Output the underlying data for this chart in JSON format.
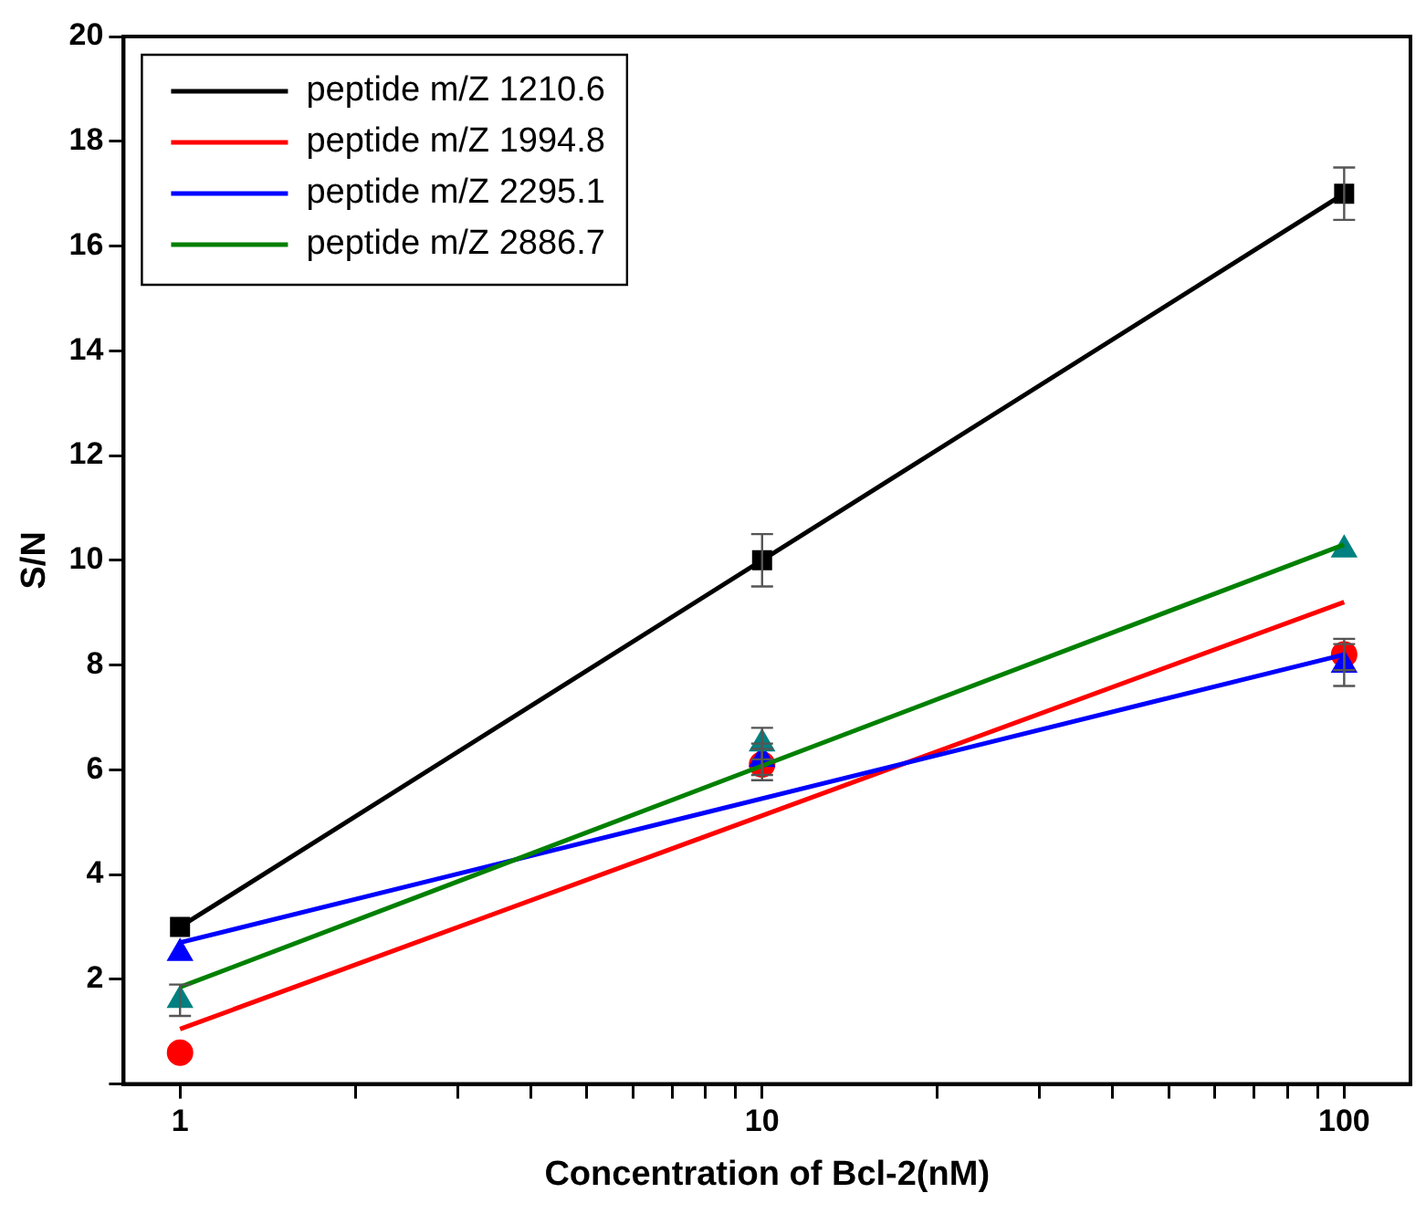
{
  "chart_data": {
    "type": "scatter",
    "xlabel": "Concentration of Bcl-2(nM)",
    "ylabel": "S/N",
    "log": "x",
    "xlim": [
      0.8,
      130
    ],
    "ylim": [
      0,
      20
    ],
    "xticks": [
      1,
      {
        "value": 2,
        "label": null
      },
      {
        "value": 3,
        "label": null
      },
      {
        "value": 4,
        "label": null
      },
      {
        "value": 5,
        "label": null
      },
      {
        "value": 6,
        "label": null
      },
      {
        "value": 7,
        "label": null
      },
      {
        "value": 8,
        "label": null
      },
      {
        "value": 9,
        "label": null
      },
      10,
      {
        "value": 20,
        "label": null
      },
      {
        "value": 30,
        "label": null
      },
      {
        "value": 40,
        "label": null
      },
      {
        "value": 50,
        "label": null
      },
      {
        "value": 60,
        "label": null
      },
      {
        "value": 70,
        "label": null
      },
      {
        "value": 80,
        "label": null
      },
      {
        "value": 90,
        "label": null
      },
      100
    ],
    "yticks": [
      {
        "value": 0,
        "label": null
      },
      2,
      4,
      6,
      8,
      10,
      12,
      14,
      16,
      18,
      20
    ],
    "grid": false,
    "legend": "top left",
    "series": [
      {
        "color": "#000000",
        "marker": "square",
        "x": [
          1,
          10,
          100
        ],
        "values": [
          3,
          10,
          17
        ],
        "errors": [
          null,
          0.5,
          0.5
        ]
      },
      {
        "color": "#ff0000",
        "marker": "circle",
        "x": [
          1,
          10,
          100
        ],
        "values": [
          0.6,
          6.1,
          8.2
        ],
        "errors": [
          null,
          0.3,
          0.3
        ]
      },
      {
        "color": "#0000ff",
        "marker": "triangle",
        "x": [
          1,
          10,
          100
        ],
        "values": [
          2.5,
          6.2,
          8.0
        ],
        "errors": [
          null,
          0.3,
          0.4
        ]
      },
      {
        "color": "#008080",
        "marker": "triangle",
        "x": [
          1,
          10,
          100
        ],
        "values": [
          1.6,
          6.5,
          10.2
        ],
        "errors": [
          0.3,
          0.3,
          null
        ]
      },
      {
        "type": "line",
        "name": "peptide m/Z 1210.6",
        "color": "#000000",
        "x": [
          1,
          100
        ],
        "values": [
          3,
          17
        ],
        "line_style": "solid"
      },
      {
        "type": "line",
        "name": "peptide m/Z 1994.8",
        "color": "#ff0000",
        "x": [
          1,
          100
        ],
        "values": [
          1.05,
          9.2
        ],
        "line_style": "solid"
      },
      {
        "type": "line",
        "name": "peptide m/Z 2295.1",
        "color": "#0000ff",
        "x": [
          1,
          100
        ],
        "values": [
          2.7,
          8.2
        ],
        "line_style": "solid"
      },
      {
        "type": "line",
        "name": "peptide m/Z 2886.7",
        "color": "#008000",
        "x": [
          1,
          100
        ],
        "values": [
          1.85,
          10.3
        ],
        "line_style": "solid"
      }
    ]
  }
}
